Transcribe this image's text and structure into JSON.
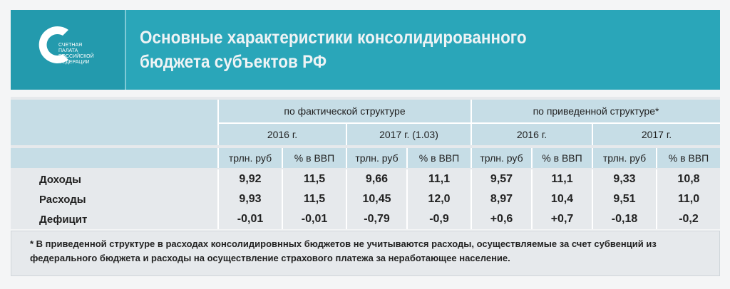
{
  "header": {
    "logo_text": [
      "СЧЕТНАЯ",
      "ПАЛАТА",
      "РОССИЙСКОЙ",
      "ФЕДЕРАЦИИ"
    ],
    "title": [
      "Основные характеристики консолидированного",
      "бюджета субъектов РФ"
    ]
  },
  "table": {
    "groups": [
      "по фактической структуре",
      "по приведенной структуре*"
    ],
    "periods": [
      "2016 г.",
      "2017 г. (1.03)",
      "2016 г.",
      "2017 г."
    ],
    "units": [
      "трлн. руб",
      "% в ВВП",
      "трлн. руб",
      "% в ВВП",
      "трлн. руб",
      "% в ВВП",
      "трлн. руб",
      "% в ВВП"
    ],
    "rows": [
      [
        "Доходы",
        "9,92",
        "11,5",
        "9,66",
        "11,1",
        "9,57",
        "11,1",
        "9,33",
        "10,8"
      ],
      [
        "Расходы",
        "9,93",
        "11,5",
        "10,45",
        "12,0",
        "8,97",
        "10,4",
        "9,51",
        "11,0"
      ],
      [
        "Дефицит",
        "-0,01",
        "-0,01",
        "-0,79",
        "-0,9",
        "+0,6",
        "+0,7",
        "-0,18",
        "-0,2"
      ]
    ]
  },
  "footnote": "* В приведенной структуре в расходах консолидировнных бюджетов не учитываются расходы, осуществляемые за счет субвенций из федерального бюджета и расходы на осуществление страхового платежа за неработающее население."
}
